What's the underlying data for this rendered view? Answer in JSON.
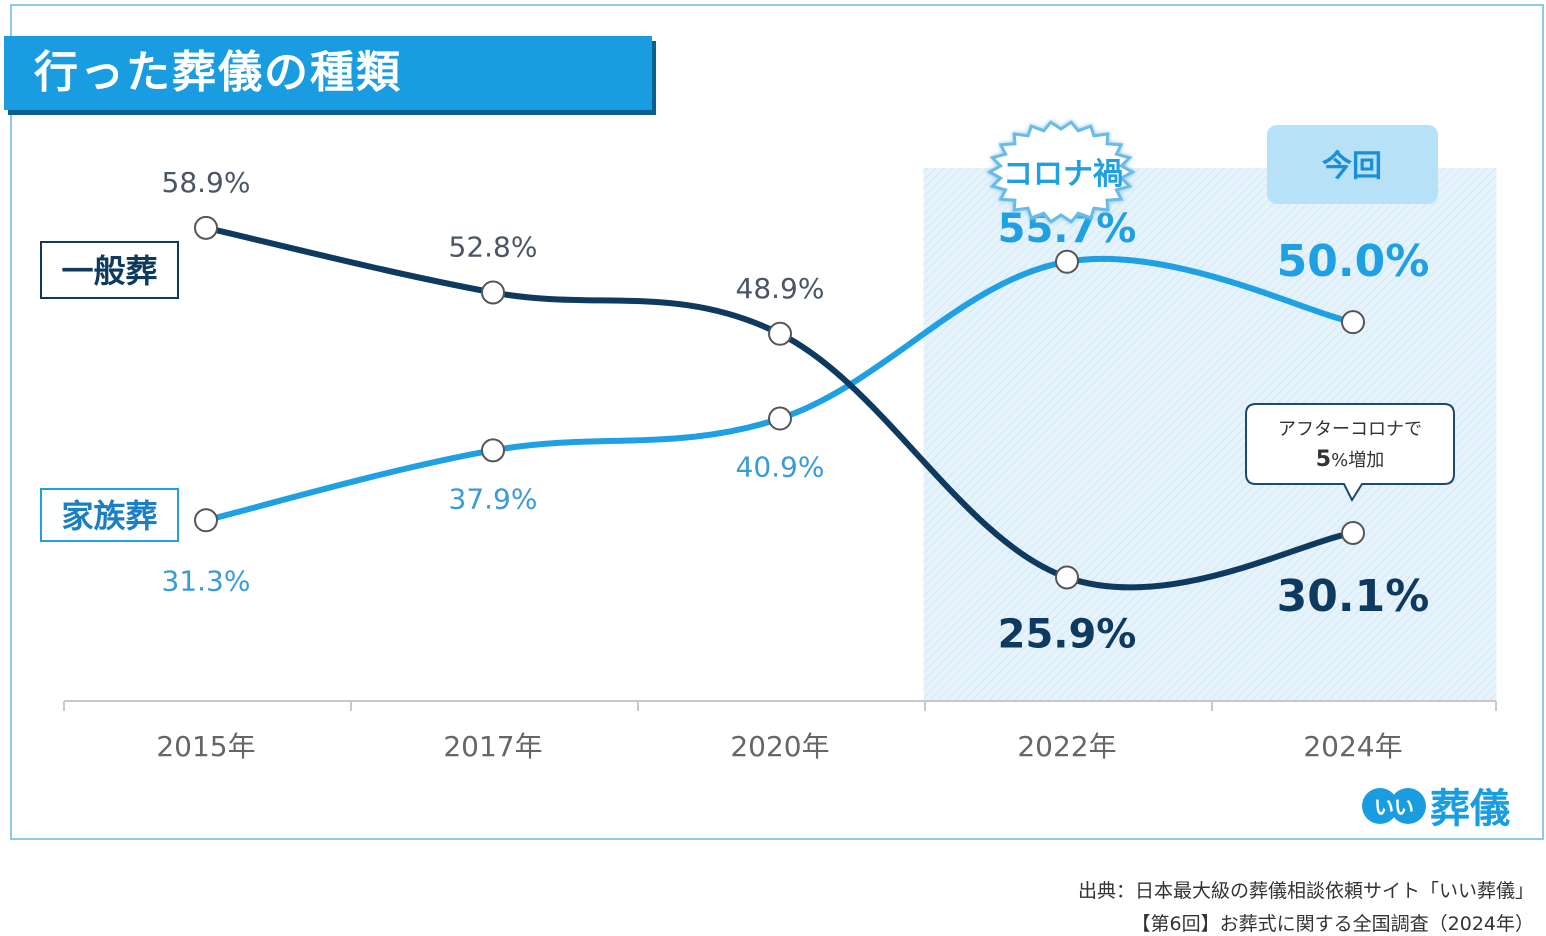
{
  "title": "行った葬儀の種類",
  "chart_data": {
    "type": "line",
    "categories": [
      "2015年",
      "2017年",
      "2020年",
      "2022年",
      "2024年"
    ],
    "series": [
      {
        "name": "一般葬",
        "values": [
          58.9,
          52.8,
          48.9,
          25.9,
          30.1
        ],
        "labels": [
          "58.9%",
          "52.8%",
          "48.9%",
          "25.9%",
          "30.1%"
        ],
        "color": "#0f3a5f"
      },
      {
        "name": "家族葬",
        "values": [
          31.3,
          37.9,
          40.9,
          55.7,
          50.0
        ],
        "labels": [
          "31.3%",
          "37.9%",
          "40.9%",
          "55.7%",
          "50.0%"
        ],
        "color": "#1fa0e3"
      }
    ],
    "highlights": [
      {
        "category": "2022年",
        "label": "コロナ禍"
      },
      {
        "category": "2024年",
        "label": "今回"
      }
    ],
    "callout": {
      "category": "2024年",
      "series": "一般葬",
      "line1": "アフターコロナで",
      "line2_num": "5",
      "line2_rest": "%増加"
    },
    "ylim": [
      20,
      62
    ],
    "grid": false
  },
  "logo": {
    "mark": "いい",
    "text": "葬儀"
  },
  "footer": {
    "line1": "出典：日本最大級の葬儀相談依頼サイト「いい葬儀」",
    "line2": "【第6回】お葬式に関する全国調査（2024年）"
  },
  "colors": {
    "banner": "#1a9de0",
    "dark_series": "#0f3a5f",
    "light_series": "#1fa0e3",
    "highlight_fill": "#e3f2fb"
  }
}
